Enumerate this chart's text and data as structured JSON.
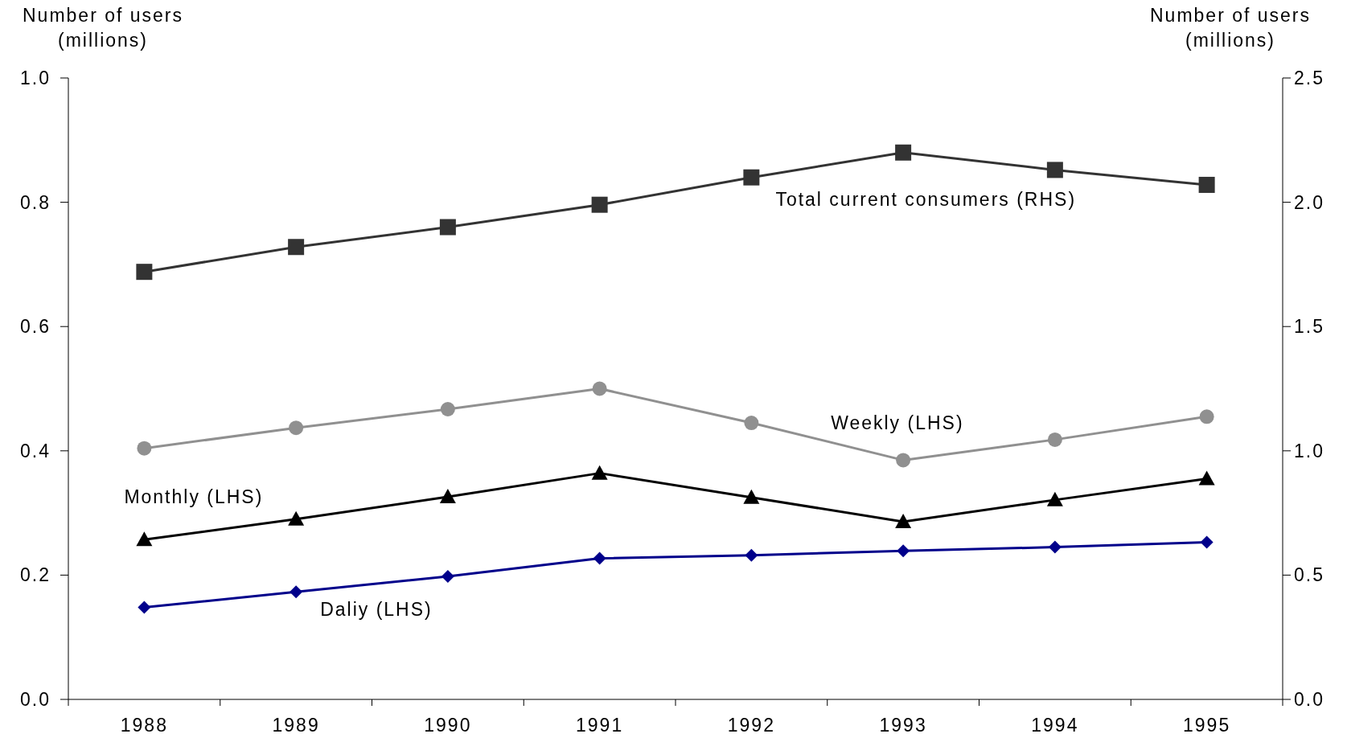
{
  "chart_data": {
    "type": "line",
    "ylabel": "Number of users (millions)",
    "y2label": "Number of users (millions)",
    "categories": [
      "1988",
      "1989",
      "1990",
      "1991",
      "1992",
      "1993",
      "1994",
      "1995"
    ],
    "ylim": [
      0,
      1
    ],
    "yticks": [
      {
        "value": 0,
        "label": "0.0"
      },
      {
        "value": 0.2,
        "label": "0.2"
      },
      {
        "value": 0.4,
        "label": "0.4"
      },
      {
        "value": 0.6,
        "label": "0.6"
      },
      {
        "value": 0.8,
        "label": "0.8"
      },
      {
        "value": 1,
        "label": "1.0"
      }
    ],
    "y2lim": [
      0,
      2.5
    ],
    "y2ticks": [
      {
        "value": 0,
        "label": "0.0"
      },
      {
        "value": 0.5,
        "label": "0.5"
      },
      {
        "value": 1,
        "label": "1.0"
      },
      {
        "value": 1.5,
        "label": "1.5"
      },
      {
        "value": 2,
        "label": "2.0"
      },
      {
        "value": 2.5,
        "label": "2.5"
      }
    ],
    "grid": false,
    "series": [
      {
        "name": "Total current consumers (RHS)",
        "color": "#333333",
        "marker": "square",
        "axis": "y2",
        "values": [
          1.72,
          1.82,
          1.9,
          1.99,
          2.1,
          2.2,
          2.13,
          2.07
        ]
      },
      {
        "name": "Weekly (LHS)",
        "color": "#909090",
        "marker": "circle",
        "values": [
          0.404,
          0.437,
          0.467,
          0.5,
          0.445,
          0.385,
          0.418,
          0.455
        ]
      },
      {
        "name": "Monthly (LHS)",
        "color": "#000000",
        "marker": "triangle",
        "values": [
          0.257,
          0.29,
          0.326,
          0.364,
          0.325,
          0.286,
          0.321,
          0.355
        ]
      },
      {
        "name": "Daliy (LHS)",
        "color": "#00008b",
        "marker": "diamond",
        "values": [
          0.148,
          0.173,
          0.198,
          0.227,
          0.232,
          0.239,
          0.245,
          0.253
        ]
      }
    ]
  }
}
